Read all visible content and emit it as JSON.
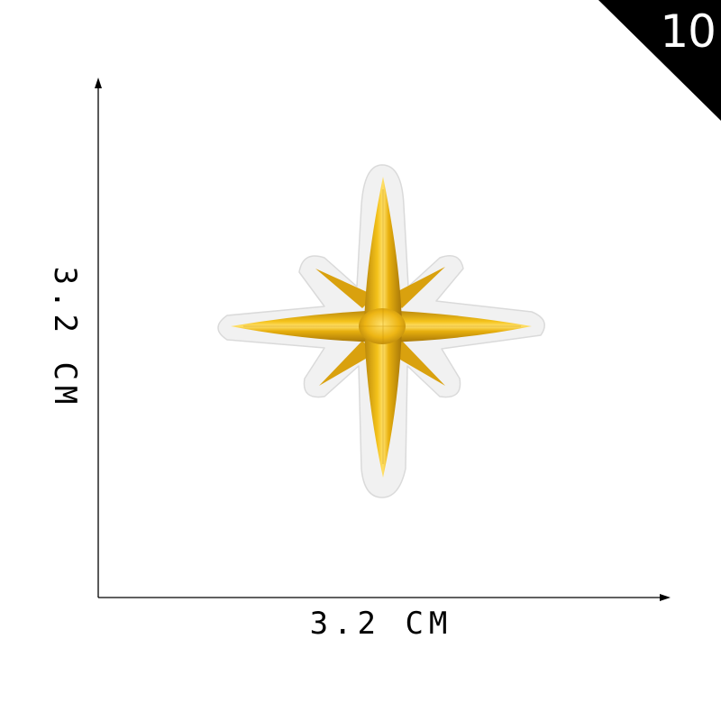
{
  "corner_badge": {
    "number": "10",
    "color": "#000000"
  },
  "dimensions": {
    "width_label": "3.2 CM",
    "height_label": "3.2 CM"
  },
  "patch": {
    "subject": "eight-point-star-embroidered-patch",
    "thread_color": "#E3A90C",
    "backing_color": "#F1F1F1"
  }
}
